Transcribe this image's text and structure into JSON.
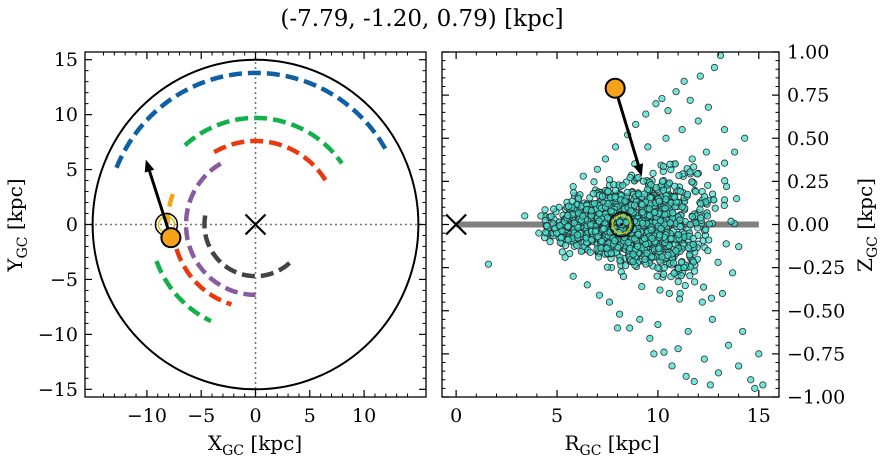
{
  "figure_title": "(-7.79, -1.20, 0.79) [kpc]",
  "chart_data": [
    {
      "type": "scatter",
      "xlabel": "X",
      "xlabel_sub": "GC",
      "xlabel_unit": " [kpc]",
      "ylabel": "Y",
      "ylabel_sub": "GC",
      "ylabel_unit": " [kpc]",
      "xlim": [
        -15.7,
        15.7
      ],
      "ylim": [
        -15.7,
        15.7
      ],
      "xticks": [
        -10,
        -5,
        0,
        5,
        10
      ],
      "xticklabels": [
        "−10",
        "−5",
        "0",
        "5",
        "10"
      ],
      "yticks": [
        -15,
        -10,
        -5,
        0,
        5,
        10,
        15
      ],
      "yticklabels": [
        "−15",
        "−10",
        "−5",
        "0",
        "5",
        "10",
        "15"
      ],
      "boundary_circle_radius": 15,
      "galactic_center": {
        "x": 0,
        "y": 0
      },
      "object": {
        "x": -7.79,
        "y": -1.2,
        "color": "#f7a21b"
      },
      "sun": {
        "x": -8.2,
        "y": 0
      },
      "velocity_arrow": {
        "x0": -7.79,
        "y0": -1.2,
        "x1": -10.1,
        "y1": 5.9
      },
      "spiral_arms": [
        {
          "color": "#0e5fa3",
          "r": 13.8,
          "theta_start": 158,
          "theta_end": 30
        },
        {
          "color": "#14b14b",
          "r": 9.7,
          "theta_start": 132,
          "theta_end": 35
        },
        {
          "color": "#14b14b",
          "r": 9.7,
          "theta_start": 200,
          "theta_end": 245
        },
        {
          "color": "#e8390f",
          "r": 7.6,
          "theta_start": 120,
          "theta_end": 30
        },
        {
          "color": "#e8390f",
          "r": 7.6,
          "theta_start": 197,
          "theta_end": 253
        },
        {
          "color": "#f7a21b",
          "r": 8.1,
          "theta_start": 160,
          "theta_end": 180
        },
        {
          "color": "#8a5a9f",
          "r": 6.4,
          "theta_start": 120,
          "theta_end": 270
        },
        {
          "color": "#444444",
          "r": 4.7,
          "theta_start": 170,
          "theta_end": 318
        }
      ]
    },
    {
      "type": "scatter",
      "xlabel": "R",
      "xlabel_sub": "GC",
      "xlabel_unit": " [kpc]",
      "ylabel": "Z",
      "ylabel_sub": "GC",
      "ylabel_unit": " [kpc]",
      "xlim": [
        -0.7,
        16
      ],
      "ylim": [
        -1.0,
        1.0
      ],
      "xticks": [
        0,
        5,
        10,
        15
      ],
      "xticklabels": [
        "0",
        "5",
        "10",
        "15"
      ],
      "yticks": [
        -1.0,
        -0.75,
        -0.5,
        -0.25,
        0.0,
        0.25,
        0.5,
        0.75,
        1.0
      ],
      "yticklabels": [
        "−1.00",
        "−0.75",
        "−0.50",
        "−0.25",
        "0.00",
        "0.25",
        "0.50",
        "0.75",
        "1.00"
      ],
      "disk_line": {
        "x0": 0,
        "x1": 15,
        "z": 0,
        "color": "#808080"
      },
      "galactic_center": {
        "x": 0,
        "z": 0
      },
      "sun": {
        "x": 8.2,
        "z": 0
      },
      "object": {
        "x": 7.88,
        "z": 0.79,
        "color": "#f7a21b"
      },
      "velocity_arrow": {
        "x0": 7.88,
        "z0": 0.79,
        "x1": 9.2,
        "z1": 0.28
      },
      "point_color": "#3fe0d0",
      "points": [
        [
          1.6,
          -0.23
        ],
        [
          3.4,
          0.05
        ],
        [
          4.1,
          -0.05
        ],
        [
          5.4,
          -0.19
        ],
        [
          5.8,
          0.22
        ],
        [
          5.8,
          -0.3
        ],
        [
          6.3,
          0.28
        ],
        [
          6.5,
          -0.35
        ],
        [
          7.0,
          0.32
        ],
        [
          7.1,
          -0.41
        ],
        [
          7.4,
          0.38
        ],
        [
          7.6,
          -0.45
        ],
        [
          7.9,
          0.45
        ],
        [
          8.1,
          -0.52
        ],
        [
          8.5,
          0.52
        ],
        [
          8.6,
          -0.6
        ],
        [
          8.9,
          0.58
        ],
        [
          9.1,
          -0.55
        ],
        [
          9.4,
          0.64
        ],
        [
          9.6,
          -0.66
        ],
        [
          9.9,
          0.7
        ],
        [
          10.0,
          -0.58
        ],
        [
          10.2,
          0.73
        ],
        [
          10.3,
          -0.74
        ],
        [
          10.5,
          0.66
        ],
        [
          10.7,
          -0.82
        ],
        [
          10.9,
          0.77
        ],
        [
          11.0,
          -0.72
        ],
        [
          11.3,
          0.83
        ],
        [
          11.4,
          -0.88
        ],
        [
          11.6,
          0.72
        ],
        [
          11.8,
          -0.91
        ],
        [
          12.1,
          0.86
        ],
        [
          12.3,
          -0.78
        ],
        [
          12.5,
          0.68
        ],
        [
          12.6,
          -0.93
        ],
        [
          12.8,
          0.91
        ],
        [
          13.0,
          -0.86
        ],
        [
          13.3,
          0.55
        ],
        [
          13.5,
          -0.7
        ],
        [
          13.8,
          0.42
        ],
        [
          14.0,
          -0.82
        ],
        [
          14.3,
          0.5
        ],
        [
          14.6,
          -0.9
        ],
        [
          14.8,
          -0.95
        ],
        [
          15.2,
          -0.93
        ],
        [
          15.0,
          -0.75
        ],
        [
          14.2,
          -0.62
        ],
        [
          13.1,
          0.98
        ],
        [
          9.5,
          0.45
        ],
        [
          10.4,
          0.5
        ],
        [
          11.2,
          0.55
        ],
        [
          12.0,
          0.6
        ],
        [
          12.4,
          0.42
        ],
        [
          11.7,
          0.38
        ],
        [
          10.8,
          0.35
        ],
        [
          12.9,
          0.33
        ],
        [
          13.4,
          0.22
        ],
        [
          13.9,
          0.15
        ],
        [
          12.2,
          -0.45
        ],
        [
          11.1,
          -0.4
        ],
        [
          10.1,
          -0.38
        ],
        [
          9.2,
          -0.36
        ],
        [
          12.7,
          -0.55
        ],
        [
          13.2,
          -0.4
        ],
        [
          13.7,
          -0.28
        ],
        [
          8.0,
          -0.6
        ],
        [
          9.8,
          -0.75
        ],
        [
          11.5,
          -0.62
        ],
        [
          6.9,
          0.2
        ],
        [
          7.7,
          -0.25
        ],
        [
          6.0,
          0.12
        ],
        [
          5.1,
          0.1
        ],
        [
          4.6,
          0.04
        ]
      ]
    }
  ]
}
